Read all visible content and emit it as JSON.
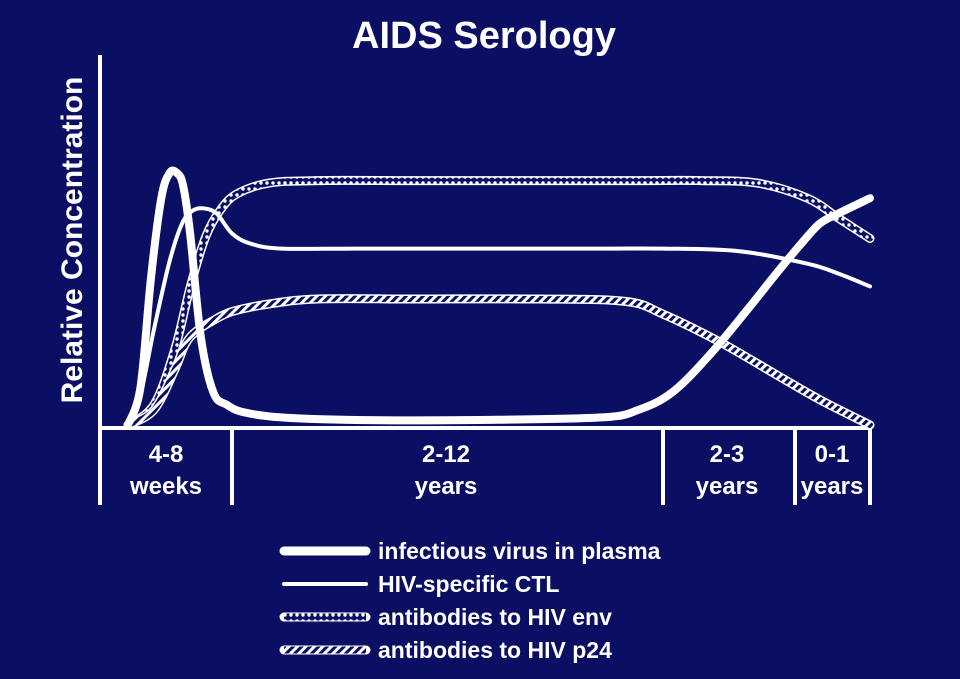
{
  "chart_data": {
    "type": "line",
    "title": "AIDS Serology",
    "ylabel": "Relative Concentration",
    "xlabel": "",
    "ylim": [
      0,
      1
    ],
    "grid": false,
    "legend_position": "bottom",
    "periods": [
      {
        "line1": "4-8",
        "line2": "weeks"
      },
      {
        "line1": "2-12",
        "line2": "years"
      },
      {
        "line1": "2-3",
        "line2": "years"
      },
      {
        "line1": "0-1",
        "line2": "years"
      }
    ],
    "period_bounds": [
      0,
      1,
      4.5,
      5.2,
      5.8
    ],
    "series": [
      {
        "name": "infectious virus in plasma",
        "style": "thick",
        "x": [
          0.0,
          0.12,
          0.22,
          0.32,
          0.4,
          0.47,
          0.53,
          0.6,
          0.7,
          0.82,
          0.95,
          1.1,
          1.4,
          2.0,
          3.0,
          4.0,
          4.3,
          4.55,
          4.75,
          4.95,
          5.1,
          5.25,
          5.4,
          5.55,
          5.8
        ],
        "values": [
          0.0,
          0.15,
          0.58,
          0.9,
          1.0,
          1.0,
          0.95,
          0.75,
          0.35,
          0.13,
          0.08,
          0.05,
          0.03,
          0.02,
          0.02,
          0.03,
          0.06,
          0.13,
          0.28,
          0.46,
          0.6,
          0.72,
          0.8,
          0.84,
          0.9
        ]
      },
      {
        "name": "HIV-specific CTL",
        "style": "thin",
        "x": [
          0.0,
          0.12,
          0.25,
          0.4,
          0.52,
          0.62,
          0.72,
          0.85,
          1.0,
          1.15,
          1.4,
          2.0,
          3.0,
          4.0,
          4.5,
          4.9,
          5.3,
          5.55,
          5.8
        ],
        "values": [
          0.0,
          0.12,
          0.38,
          0.65,
          0.8,
          0.85,
          0.86,
          0.84,
          0.76,
          0.72,
          0.7,
          0.7,
          0.7,
          0.7,
          0.7,
          0.69,
          0.64,
          0.6,
          0.55
        ]
      },
      {
        "name": "antibodies to HIV env",
        "style": "dotted",
        "x": [
          0.0,
          0.25,
          0.45,
          0.6,
          0.75,
          0.9,
          1.05,
          1.3,
          1.7,
          2.5,
          3.5,
          4.3,
          4.7,
          5.0,
          5.3,
          5.55,
          5.8
        ],
        "values": [
          0.0,
          0.08,
          0.3,
          0.55,
          0.75,
          0.86,
          0.92,
          0.96,
          0.97,
          0.97,
          0.97,
          0.97,
          0.97,
          0.96,
          0.9,
          0.82,
          0.74
        ]
      },
      {
        "name": "antibodies to HIV p24",
        "style": "hatched",
        "x": [
          0.0,
          0.25,
          0.45,
          0.55,
          0.65,
          0.8,
          1.0,
          1.3,
          1.7,
          2.5,
          3.5,
          4.2,
          4.5,
          4.8,
          5.1,
          5.4,
          5.8
        ],
        "values": [
          0.0,
          0.06,
          0.22,
          0.32,
          0.37,
          0.41,
          0.45,
          0.48,
          0.5,
          0.5,
          0.5,
          0.49,
          0.44,
          0.33,
          0.2,
          0.1,
          0.0
        ]
      }
    ]
  },
  "colors": {
    "background": "#0b0f63",
    "foreground": "#ffffff"
  }
}
